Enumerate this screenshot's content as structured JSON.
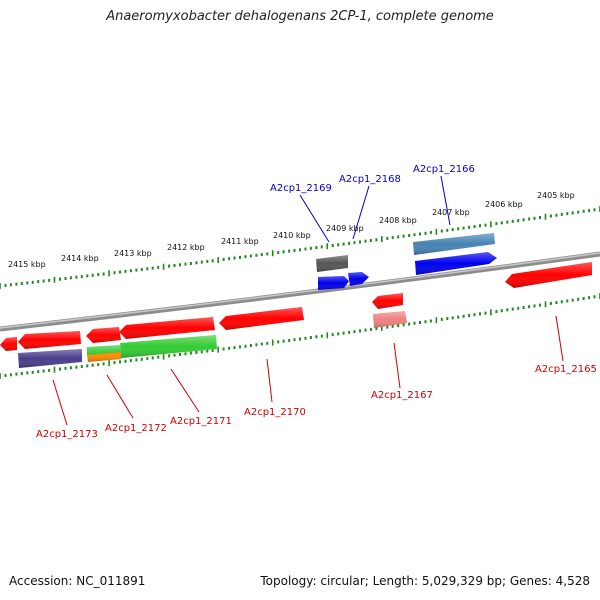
{
  "title": "Anaeromyxobacter dehalogenans 2CP-1, complete genome",
  "footer": {
    "accession": "Accession: NC_011891",
    "topology": "Topology: circular; Length: 5,029,329 bp; Genes: 4,528"
  },
  "colors": {
    "backbone": "#888888",
    "scale_ticks": "#1e8a1e",
    "label_top": "#0000cc",
    "label_bottom": "#cc0000",
    "gene_red": "#ff0000",
    "gene_pink": "#f08080",
    "gene_blue": "#0000ee",
    "gene_steelblue": "#4682b4",
    "gene_gray": "#555555",
    "gene_slateblue": "#483d8b",
    "gene_green": "#33cc33",
    "gene_orange": "#ff8c00"
  },
  "scale_labels": [
    "2405 kbp",
    "2406 kbp",
    "2407 kbp",
    "2408 kbp",
    "2409 kbp",
    "2410 kbp",
    "2411 kbp",
    "2412 kbp",
    "2413 kbp",
    "2414 kbp",
    "2415 kbp"
  ],
  "gene_labels": [
    {
      "text": "A2cp1_2169",
      "color": "#0000cc"
    },
    {
      "text": "A2cp1_2168",
      "color": "#0000cc"
    },
    {
      "text": "A2cp1_2166",
      "color": "#0000cc"
    },
    {
      "text": "A2cp1_2173",
      "color": "#cc0000"
    },
    {
      "text": "A2cp1_2172",
      "color": "#cc0000"
    },
    {
      "text": "A2cp1_2171",
      "color": "#cc0000"
    },
    {
      "text": "A2cp1_2170",
      "color": "#cc0000"
    },
    {
      "text": "A2cp1_2167",
      "color": "#cc0000"
    },
    {
      "text": "A2cp1_2165",
      "color": "#cc0000"
    }
  ]
}
